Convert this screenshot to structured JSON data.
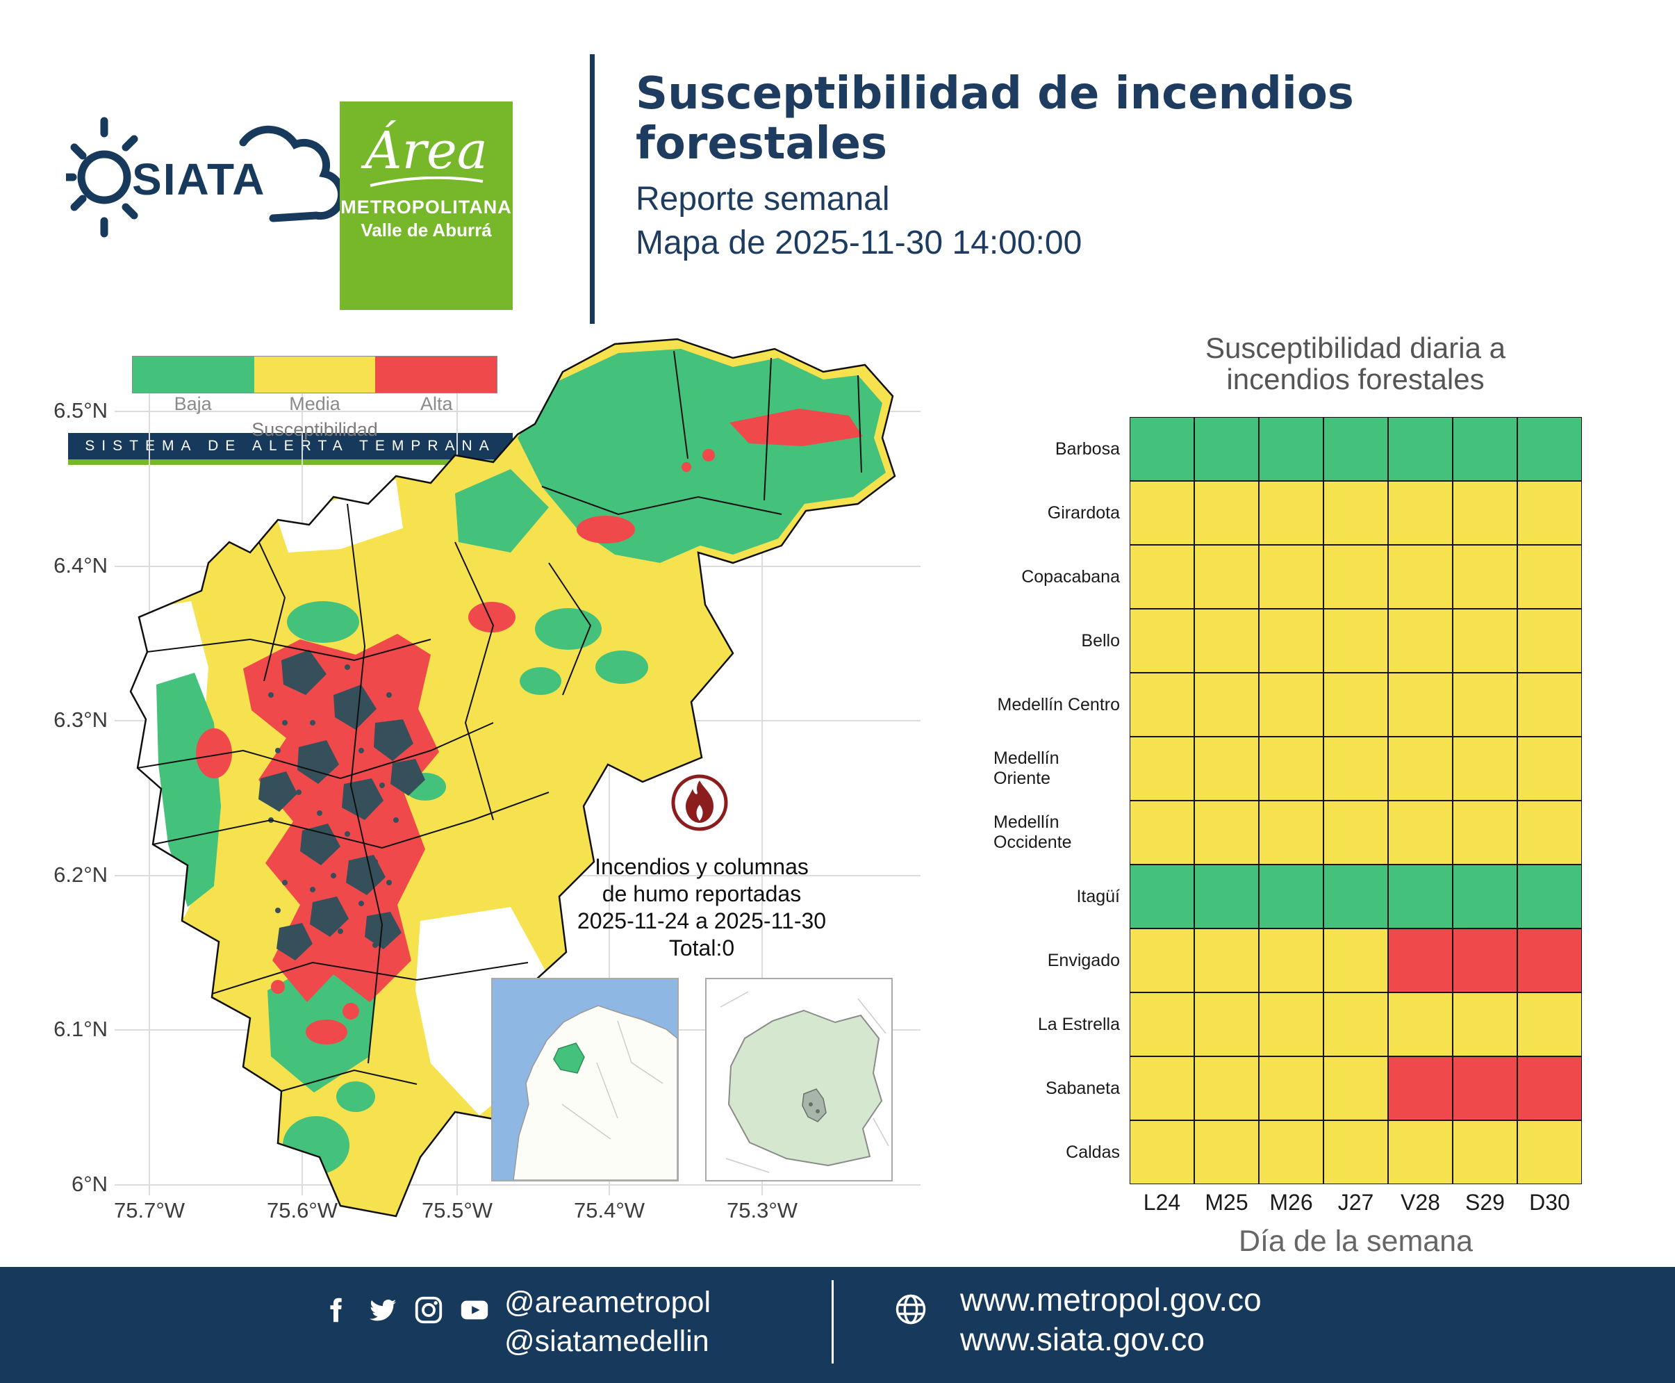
{
  "colors": {
    "navy": "#16395c",
    "amva_green": "#76b82a",
    "baja_green": "#44c17b",
    "media_yellow": "#f6e14e",
    "alta_red": "#f0494c",
    "urban_slate": "#35505a",
    "fire_icon_red": "#8b1d1d",
    "ocean_blue": "#8fb7e3"
  },
  "header": {
    "siata_text": "SIATA",
    "siata_banner": "SISTEMA DE ALERTA TEMPRANA",
    "amva": {
      "script": "Área",
      "line2": "METROPOLITANA",
      "line3": "Valle de Aburrá"
    },
    "title": "Susceptibilidad de incendios forestales",
    "subtitle": "Reporte semanal",
    "map_label": "Mapa de 2025-11-30 14:00:00"
  },
  "map": {
    "legend": {
      "title": "Susceptibilidad",
      "items": [
        {
          "label": "Baja",
          "color": "#44c17b"
        },
        {
          "label": "Media",
          "color": "#f6e14e"
        },
        {
          "label": "Alta",
          "color": "#f0494c"
        }
      ]
    },
    "y_ticks": [
      "6.5°N",
      "6.4°N",
      "6.3°N",
      "6.2°N",
      "6.1°N",
      "6°N"
    ],
    "x_ticks": [
      "75.7°W",
      "75.6°W",
      "75.5°W",
      "75.4°W",
      "75.3°W"
    ],
    "annotation": {
      "lines": [
        "Incendios y columnas",
        "de humo reportadas",
        "2025-11-24 a 2025-11-30",
        "Total:0"
      ]
    }
  },
  "chart_data": {
    "type": "heatmap",
    "title": "Susceptibilidad diaria a incendios forestales",
    "title_line1": "Susceptibilidad diaria a",
    "title_line2": "incendios forestales",
    "xlabel": "Día de la semana",
    "legend_position": "none",
    "columns": [
      "L24",
      "M25",
      "M26",
      "J27",
      "V28",
      "S29",
      "D30"
    ],
    "rows": [
      "Barbosa",
      "Girardota",
      "Copacabana",
      "Bello",
      "Medellín Centro",
      "Medellín Oriente",
      "Medellín Occidente",
      "Itagüí",
      "Envigado",
      "La Estrella",
      "Sabaneta",
      "Caldas"
    ],
    "levels": {
      "baja": "#44c17b",
      "media": "#f6e14e",
      "alta": "#f0494c"
    },
    "values": [
      [
        "baja",
        "baja",
        "baja",
        "baja",
        "baja",
        "baja",
        "baja"
      ],
      [
        "media",
        "media",
        "media",
        "media",
        "media",
        "media",
        "media"
      ],
      [
        "media",
        "media",
        "media",
        "media",
        "media",
        "media",
        "media"
      ],
      [
        "media",
        "media",
        "media",
        "media",
        "media",
        "media",
        "media"
      ],
      [
        "media",
        "media",
        "media",
        "media",
        "media",
        "media",
        "media"
      ],
      [
        "media",
        "media",
        "media",
        "media",
        "media",
        "media",
        "media"
      ],
      [
        "media",
        "media",
        "media",
        "media",
        "media",
        "media",
        "media"
      ],
      [
        "baja",
        "baja",
        "baja",
        "baja",
        "baja",
        "baja",
        "baja"
      ],
      [
        "media",
        "media",
        "media",
        "media",
        "alta",
        "alta",
        "alta"
      ],
      [
        "media",
        "media",
        "media",
        "media",
        "media",
        "media",
        "media"
      ],
      [
        "media",
        "media",
        "media",
        "media",
        "alta",
        "alta",
        "alta"
      ],
      [
        "media",
        "media",
        "media",
        "media",
        "media",
        "media",
        "media"
      ]
    ]
  },
  "footer": {
    "icons": [
      "facebook",
      "twitter",
      "instagram",
      "youtube",
      "globe"
    ],
    "handles": [
      "@areametropol",
      "@siatamedellin"
    ],
    "urls": [
      "www.metropol.gov.co",
      "www.siata.gov.co"
    ]
  }
}
